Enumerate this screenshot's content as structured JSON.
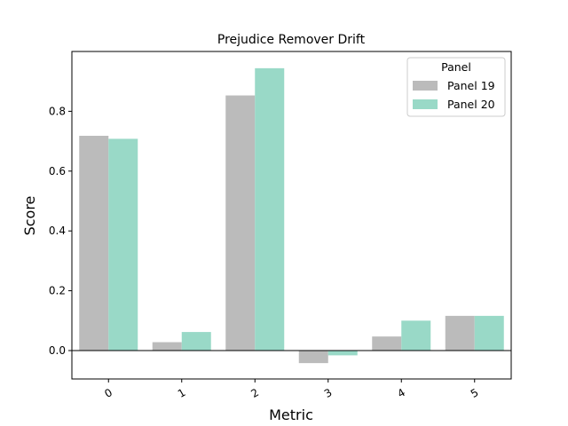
{
  "chart_data": {
    "type": "bar",
    "title": "Prejudice Remover Drift",
    "xlabel": "Metric",
    "ylabel": "Score",
    "categories": [
      "0",
      "1",
      "2",
      "3",
      "4",
      "5"
    ],
    "series": [
      {
        "name": "Panel 19",
        "color": "#bbbbbb",
        "values": [
          0.718,
          0.028,
          0.853,
          -0.042,
          0.047,
          0.116
        ]
      },
      {
        "name": "Panel 20",
        "color": "#99d9c7",
        "values": [
          0.708,
          0.062,
          0.944,
          -0.016,
          0.1,
          0.116
        ]
      }
    ],
    "ylim": [
      -0.095,
      1.0
    ],
    "yticks": [
      0.0,
      0.2,
      0.4,
      0.6,
      0.8
    ],
    "ytick_labels": [
      "0.0",
      "0.2",
      "0.4",
      "0.6",
      "0.8"
    ],
    "legend": {
      "title": "Panel",
      "placement": "top-right"
    },
    "grid": false,
    "zero_line": true
  }
}
